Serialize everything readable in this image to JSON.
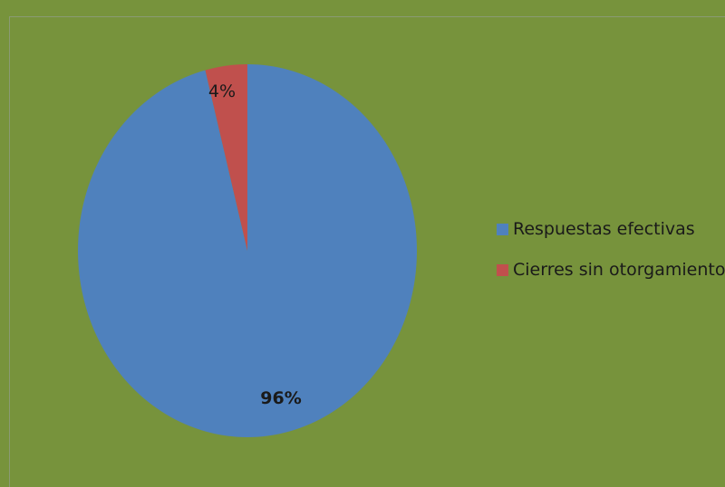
{
  "chart_data": {
    "type": "pie",
    "title": "",
    "categories": [
      "Respuestas efectivas",
      "Cierres sin otorgamiento"
    ],
    "values": [
      96,
      4
    ],
    "labels": [
      "96%",
      "4%"
    ],
    "colors": [
      "#4f81bd",
      "#c0504d"
    ],
    "legend_position": "right"
  },
  "legend": {
    "items": [
      {
        "label": "Respuestas efectivas",
        "color": "#4f81bd"
      },
      {
        "label": "Cierres sin otorgamiento",
        "color": "#c0504d"
      }
    ]
  }
}
